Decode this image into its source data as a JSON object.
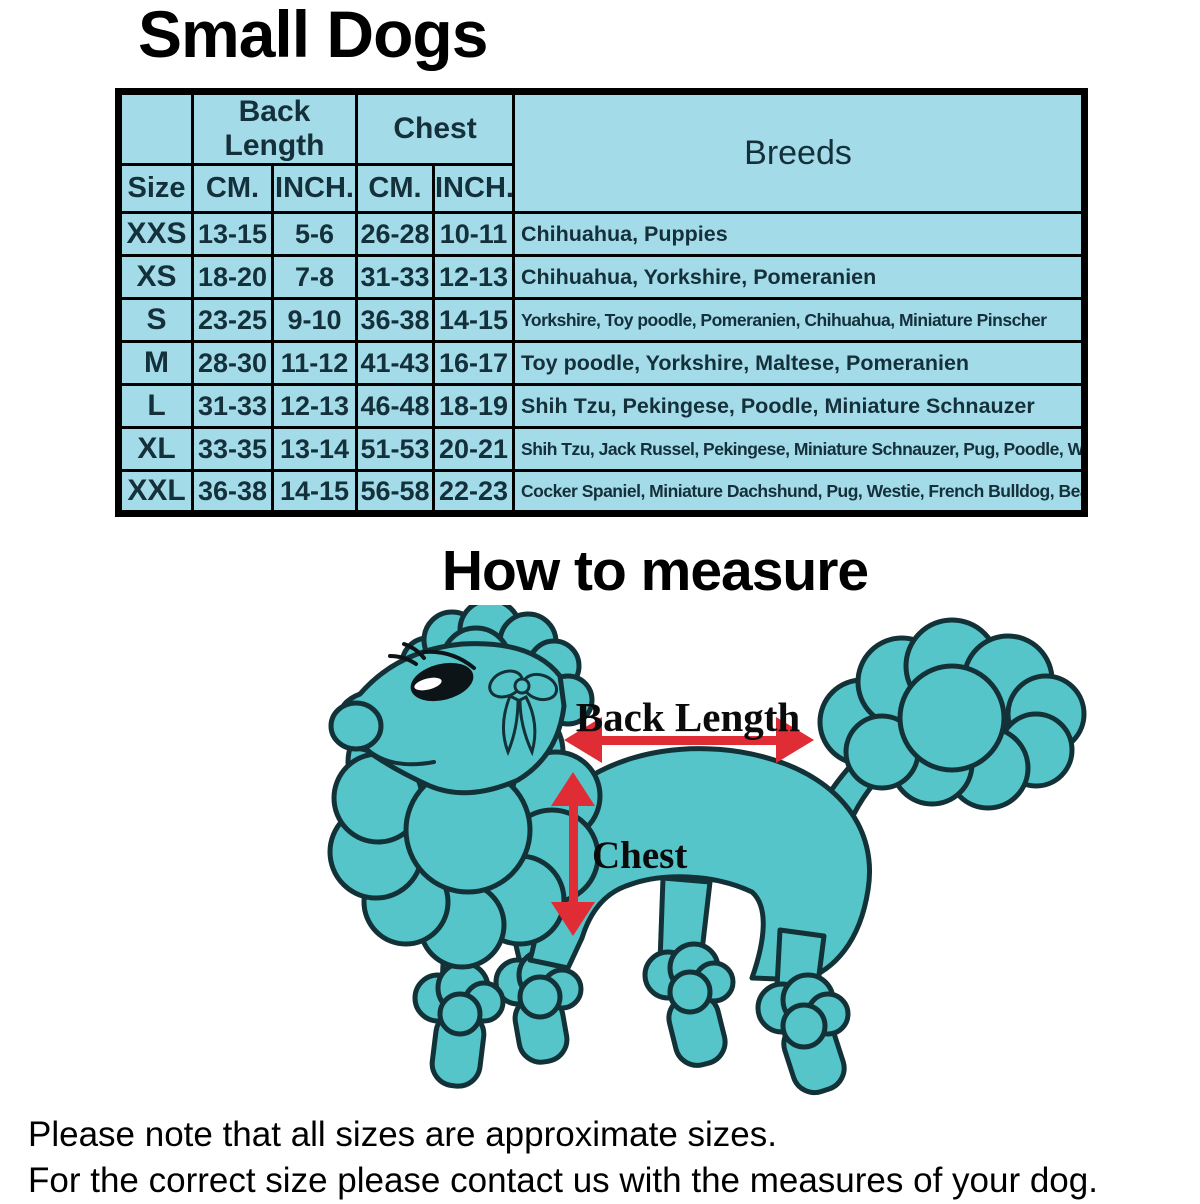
{
  "page": {
    "title": "Small Dogs",
    "measure_title": "How to measure",
    "notes": [
      "Please note that all sizes are approximate sizes.",
      "For the correct size please contact us with the measures of your dog."
    ]
  },
  "size_table": {
    "group_headers": {
      "back_length": "Back Length",
      "chest": "Chest",
      "breeds": "Breeds"
    },
    "column_headers": {
      "size": "Size",
      "back_cm": "CM.",
      "back_inch": "INCH.",
      "chest_cm": "CM.",
      "chest_inch": "INCH."
    },
    "rows": [
      {
        "size": "XXS",
        "back_cm": "13-15",
        "back_inch": "5-6",
        "chest_cm": "26-28",
        "chest_inch": "10-11",
        "breeds": "Chihuahua, Puppies"
      },
      {
        "size": "XS",
        "back_cm": "18-20",
        "back_inch": "7-8",
        "chest_cm": "31-33",
        "chest_inch": "12-13",
        "breeds": "Chihuahua, Yorkshire, Pomeranien"
      },
      {
        "size": "S",
        "back_cm": "23-25",
        "back_inch": "9-10",
        "chest_cm": "36-38",
        "chest_inch": "14-15",
        "breeds": "Yorkshire, Toy poodle, Pomeranien, Chihuahua, Miniature Pinscher"
      },
      {
        "size": "M",
        "back_cm": "28-30",
        "back_inch": "11-12",
        "chest_cm": "41-43",
        "chest_inch": "16-17",
        "breeds": "Toy poodle, Yorkshire, Maltese, Pomeranien"
      },
      {
        "size": "L",
        "back_cm": "31-33",
        "back_inch": "12-13",
        "chest_cm": "46-48",
        "chest_inch": "18-19",
        "breeds": "Shih Tzu, Pekingese, Poodle, Miniature Schnauzer"
      },
      {
        "size": "XL",
        "back_cm": "33-35",
        "back_inch": "13-14",
        "chest_cm": "51-53",
        "chest_inch": "20-21",
        "breeds": "Shih Tzu, Jack Russel, Pekingese, Miniature Schnauzer, Pug, Poodle, Westie"
      },
      {
        "size": "XXL",
        "back_cm": "36-38",
        "back_inch": "14-15",
        "chest_cm": "56-58",
        "chest_inch": "22-23",
        "breeds": "Cocker Spaniel, Miniature Dachshund, Pug, Westie, French Bulldog, Beagle"
      }
    ]
  },
  "diagram": {
    "back_length_label": "Back Length",
    "chest_label": "Chest"
  },
  "colors": {
    "table_bg": "#a4dbe8",
    "table_text": "#14303a",
    "unit_red": "#d94250",
    "arrow_red": "#e02c34",
    "dog_fill": "#56c5ca",
    "dog_outline": "#123238"
  }
}
